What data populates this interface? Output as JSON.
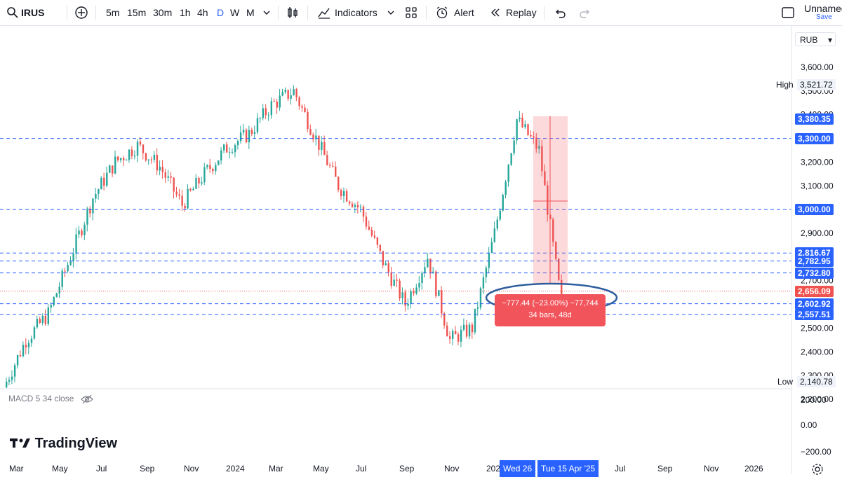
{
  "toolbar": {
    "symbol": "IRUS",
    "timeframes": [
      "5m",
      "15m",
      "30m",
      "1h",
      "4h",
      "D",
      "W",
      "M"
    ],
    "active_timeframe": "D",
    "indicators_label": "Indicators",
    "alert_label": "Alert",
    "replay_label": "Replay",
    "layout_name": "Unnamed",
    "save_label": "Save"
  },
  "currency": "RUB",
  "price_axis": {
    "ticks": [
      "3,600.00",
      "3,500.00",
      "3,400.00",
      "3,300.00",
      "3,200.00",
      "3,100.00",
      "3,000.00",
      "2,900.00",
      "2,800.00",
      "2,700.00",
      "2,600.00",
      "2,500.00",
      "2,400.00",
      "2,300.00",
      "2,200.00"
    ],
    "tick_values": [
      3600,
      3500,
      3400,
      3300,
      3200,
      3100,
      3000,
      2900,
      2800,
      2700,
      2600,
      2500,
      2400,
      2300,
      2200
    ],
    "high_label": "High",
    "high_value": "3,521.72",
    "low_label": "Low",
    "low_value": "2,140.78"
  },
  "price_labels": [
    {
      "text": "3,380.35",
      "value": 3380.35,
      "style": "blue"
    },
    {
      "text": "3,300.00",
      "value": 3300,
      "style": "blue"
    },
    {
      "text": "3,000.00",
      "value": 3000,
      "style": "blue"
    },
    {
      "text": "2,816.67",
      "value": 2816.67,
      "style": "blue"
    },
    {
      "text": "2,782.95",
      "value": 2782.95,
      "style": "blue"
    },
    {
      "text": "2,732.80",
      "value": 2732.8,
      "style": "blue"
    },
    {
      "text": "2,656.09",
      "value": 2656.09,
      "style": "red"
    },
    {
      "text": "2,602.92",
      "value": 2602.92,
      "style": "blue"
    },
    {
      "text": "2,557.51",
      "value": 2557.51,
      "style": "blue"
    }
  ],
  "measure": {
    "line1": "−777.44 (−23.00%) −77,744",
    "line2": "34 bars, 48d"
  },
  "macd": {
    "label": "MACD 5 34 close",
    "ticks": [
      "200.00",
      "0.00",
      "−200.00"
    ]
  },
  "time_axis": {
    "labels": [
      "Mar",
      "May",
      "Jul",
      "Sep",
      "Nov",
      "2024",
      "Mar",
      "May",
      "Jul",
      "Sep",
      "Nov",
      "202",
      "Jul",
      "Sep",
      "Nov",
      "2026"
    ],
    "date_start": "Wed 26",
    "date_end": "Tue 15 Apr '25"
  },
  "logo_text": "TradingView",
  "colors": {
    "up": "#26a69a",
    "down": "#ef5350",
    "accent": "#2962ff",
    "measure": "#f2545b"
  },
  "chart_data": {
    "type": "candlestick",
    "title": "",
    "x_range": [
      "2023-03",
      "2025-04"
    ],
    "y_range": [
      2140.78,
      3600
    ],
    "close_path": [
      [
        "2023-03",
        2250
      ],
      [
        "2023-04",
        2450
      ],
      [
        "2023-05",
        2560
      ],
      [
        "2023-06",
        2800
      ],
      [
        "2023-07",
        3050
      ],
      [
        "2023-08",
        3200
      ],
      [
        "2023-09",
        3270
      ],
      [
        "2023-10",
        3180
      ],
      [
        "2023-11",
        3020
      ],
      [
        "2023-12",
        3150
      ],
      [
        "2024-01",
        3260
      ],
      [
        "2024-02",
        3320
      ],
      [
        "2024-03",
        3440
      ],
      [
        "2024-04",
        3500
      ],
      [
        "2024-05",
        3300
      ],
      [
        "2024-06",
        3100
      ],
      [
        "2024-07",
        3000
      ],
      [
        "2024-08",
        2780
      ],
      [
        "2024-09",
        2600
      ],
      [
        "2024-10",
        2800
      ],
      [
        "2024-11",
        2450
      ],
      [
        "2024-12",
        2500
      ],
      [
        "2025-01",
        2900
      ],
      [
        "2025-02",
        3380
      ],
      [
        "2025-03",
        3250
      ],
      [
        "2025-04",
        2600
      ]
    ],
    "last_price": 2656.09
  }
}
